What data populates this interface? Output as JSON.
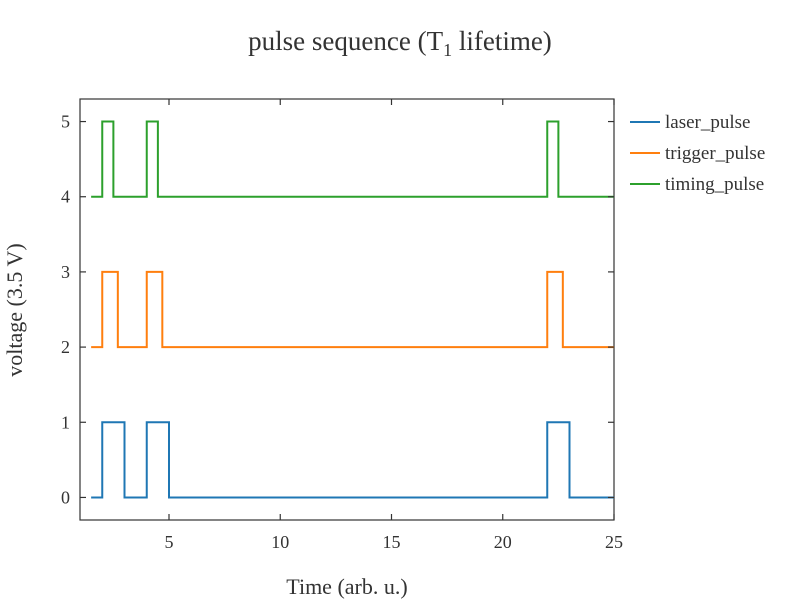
{
  "chart_data": {
    "type": "line",
    "title": "pulse sequence (T",
    "title_subscript": "1",
    "title_suffix": " lifetime)",
    "xlabel": "Time (arb. u.)",
    "ylabel": "voltage (3.5 V)",
    "xlim": [
      1,
      25
    ],
    "ylim": [
      -0.3,
      5.3
    ],
    "xticks": [
      5,
      10,
      15,
      20,
      25
    ],
    "yticks": [
      0,
      1,
      2,
      3,
      4,
      5
    ],
    "legend_position": "right",
    "series": [
      {
        "name": "laser_pulse",
        "color": "#1f77b4",
        "x": [
          1.5,
          2,
          2,
          3,
          3,
          4,
          4,
          5,
          5,
          22,
          22,
          23,
          23,
          25
        ],
        "y": [
          0,
          0,
          1,
          1,
          0,
          0,
          1,
          1,
          0,
          0,
          1,
          1,
          0,
          0
        ]
      },
      {
        "name": "trigger_pulse",
        "color": "#ff7f0e",
        "x": [
          1.5,
          2,
          2,
          2.7,
          2.7,
          4,
          4,
          4.7,
          4.7,
          22,
          22,
          22.7,
          22.7,
          25
        ],
        "y": [
          2,
          2,
          3,
          3,
          2,
          2,
          3,
          3,
          2,
          2,
          3,
          3,
          2,
          2
        ]
      },
      {
        "name": "timing_pulse",
        "color": "#2ca02c",
        "x": [
          1.5,
          2,
          2,
          2.5,
          2.5,
          4,
          4,
          4.5,
          4.5,
          22,
          22,
          22.5,
          22.5,
          25
        ],
        "y": [
          4,
          4,
          5,
          5,
          4,
          4,
          5,
          5,
          4,
          4,
          5,
          5,
          4,
          4
        ]
      }
    ]
  }
}
